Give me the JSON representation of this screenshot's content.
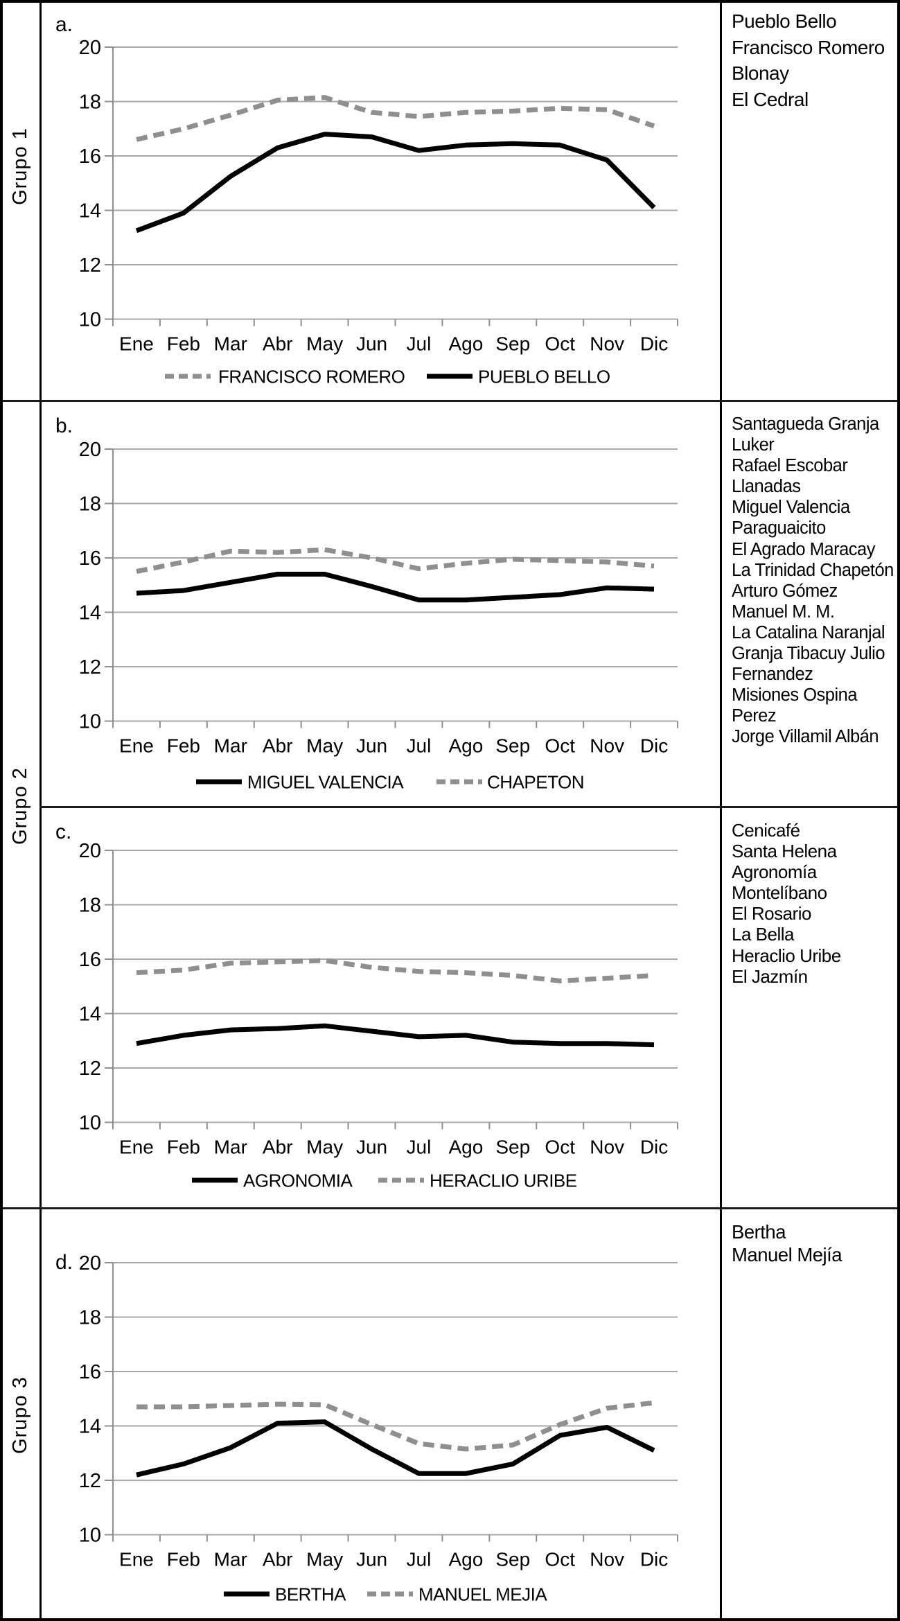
{
  "figure_type": "multi-panel monthly temperature line charts",
  "row_labels": [
    "Grupo 1",
    "Grupo 2",
    "Grupo 3"
  ],
  "months": [
    "Ene",
    "Feb",
    "Mar",
    "Abr",
    "May",
    "Jun",
    "Jul",
    "Ago",
    "Sep",
    "Oct",
    "Nov",
    "Dic"
  ],
  "y_ticks": [
    20,
    18,
    16,
    14,
    12,
    10
  ],
  "colors": {
    "solid_line": "#000000",
    "dashed_line": "#8f8f8f",
    "gridline": "#a8a8a8",
    "axis": "#8f8f8f",
    "text": "#000000",
    "border": "#000000"
  },
  "chart_data": [
    {
      "id": "a",
      "type": "line",
      "panel_label": "a.",
      "group": "Grupo 1",
      "x": [
        "Ene",
        "Feb",
        "Mar",
        "Abr",
        "May",
        "Jun",
        "Jul",
        "Ago",
        "Sep",
        "Oct",
        "Nov",
        "Dic"
      ],
      "ylim": [
        10,
        20
      ],
      "yticks": [
        10,
        12,
        14,
        16,
        18,
        20
      ],
      "grid": true,
      "legend_position": "bottom",
      "series": [
        {
          "name": "FRANCISCO ROMERO",
          "style": "dashed",
          "values": [
            16.6,
            17.0,
            17.5,
            18.05,
            18.15,
            17.6,
            17.45,
            17.6,
            17.65,
            17.75,
            17.7,
            17.1
          ]
        },
        {
          "name": "PUEBLO BELLO",
          "style": "solid",
          "values": [
            13.25,
            13.9,
            15.25,
            16.3,
            16.8,
            16.7,
            16.2,
            16.4,
            16.45,
            16.4,
            15.85,
            14.1
          ]
        }
      ],
      "station_list": [
        "Pueblo Bello",
        "Francisco Romero",
        "Blonay",
        "El Cedral"
      ]
    },
    {
      "id": "b",
      "type": "line",
      "panel_label": "b.",
      "group": "Grupo 2",
      "x": [
        "Ene",
        "Feb",
        "Mar",
        "Abr",
        "May",
        "Jun",
        "Jul",
        "Ago",
        "Sep",
        "Oct",
        "Nov",
        "Dic"
      ],
      "ylim": [
        10,
        20
      ],
      "yticks": [
        10,
        12,
        14,
        16,
        18,
        20
      ],
      "grid": true,
      "legend_position": "bottom",
      "series": [
        {
          "name": "MIGUEL VALENCIA",
          "style": "solid",
          "values": [
            14.7,
            14.8,
            15.1,
            15.4,
            15.4,
            14.95,
            14.45,
            14.45,
            14.55,
            14.65,
            14.9,
            14.85
          ]
        },
        {
          "name": "CHAPETON",
          "style": "dashed",
          "values": [
            15.5,
            15.85,
            16.25,
            16.2,
            16.3,
            16.0,
            15.6,
            15.8,
            15.95,
            15.9,
            15.85,
            15.7
          ]
        }
      ],
      "station_list": [
        "Santagueda Granja",
        "Luker",
        "Rafael Escobar",
        "Llanadas",
        "Miguel Valencia",
        "Paraguaicito",
        "El Agrado Maracay",
        "La Trinidad Chapetón",
        "Arturo Gómez",
        "Manuel M. M.",
        "La Catalina Naranjal",
        "Granja Tibacuy Julio",
        "Fernandez",
        "Misiones Ospina",
        "Perez",
        "Jorge Villamil Albán"
      ]
    },
    {
      "id": "c",
      "type": "line",
      "panel_label": "c.",
      "group": "Grupo 2",
      "x": [
        "Ene",
        "Feb",
        "Mar",
        "Abr",
        "May",
        "Jun",
        "Jul",
        "Ago",
        "Sep",
        "Oct",
        "Nov",
        "Dic"
      ],
      "ylim": [
        10,
        20
      ],
      "yticks": [
        10,
        12,
        14,
        16,
        18,
        20
      ],
      "grid": true,
      "legend_position": "bottom",
      "series": [
        {
          "name": "AGRONOMIA",
          "style": "solid",
          "values": [
            12.9,
            13.2,
            13.4,
            13.45,
            13.55,
            13.35,
            13.15,
            13.2,
            12.95,
            12.9,
            12.9,
            12.85
          ]
        },
        {
          "name": "HERACLIO URIBE",
          "style": "dashed",
          "values": [
            15.5,
            15.6,
            15.85,
            15.9,
            15.95,
            15.7,
            15.55,
            15.5,
            15.4,
            15.2,
            15.3,
            15.4
          ]
        }
      ],
      "station_list": [
        "Cenicafé",
        "Santa Helena",
        "Agronomía",
        "Montelíbano",
        "El Rosario",
        "La Bella",
        "Heraclio Uribe",
        "El Jazmín"
      ]
    },
    {
      "id": "d",
      "type": "line",
      "panel_label": "d.",
      "group": "Grupo 3",
      "x": [
        "Ene",
        "Feb",
        "Mar",
        "Abr",
        "May",
        "Jun",
        "Jul",
        "Ago",
        "Sep",
        "Oct",
        "Nov",
        "Dic"
      ],
      "ylim": [
        10,
        20
      ],
      "yticks": [
        10,
        12,
        14,
        16,
        18,
        20
      ],
      "grid": true,
      "legend_position": "bottom",
      "series": [
        {
          "name": "BERTHA",
          "style": "solid",
          "values": [
            12.2,
            12.6,
            13.2,
            14.1,
            14.15,
            13.15,
            12.25,
            12.25,
            12.6,
            13.65,
            13.95,
            13.1
          ]
        },
        {
          "name": "MANUEL MEJIA",
          "style": "dashed",
          "values": [
            14.7,
            14.7,
            14.75,
            14.8,
            14.78,
            14.05,
            13.35,
            13.15,
            13.3,
            14.05,
            14.65,
            14.85
          ]
        }
      ],
      "station_list": [
        "Bertha",
        "Manuel Mejía"
      ]
    }
  ]
}
